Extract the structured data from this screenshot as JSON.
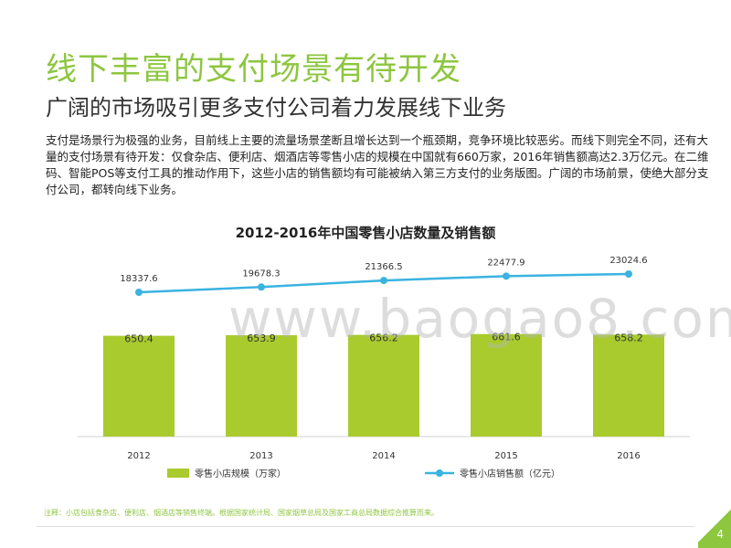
{
  "slide": {
    "title": "线下丰富的支付场景有待开发",
    "subtitle": "广阔的市场吸引更多支付公司着力发展线下业务",
    "body": "支付是场景行为极强的业务，目前线上主要的流量场景垄断且增长达到一个瓶颈期，竞争环境比较恶劣。而线下则完全不同，还有大量的支付场景有待开发：仅食杂店、便利店、烟酒店等零售小店的规模在中国就有660万家，2016年销售额高达2.3万亿元。在二维码、智能POS等支付工具的推动作用下，这些小店的销售额均有可能被纳入第三方支付的业务版图。广阔的市场前景，使绝大部分支付公司，都转向线下业务。",
    "note": "注释：小店包括食杂店、便利店、烟酒店等销售终端。根据国家统计局、国家烟草总局及国家工商总局数据综合推算而来。",
    "watermark": "www.baogao8.com",
    "page_number": "4"
  },
  "colors": {
    "title": "#8dc63f",
    "bar": "#a9cb2e",
    "line": "#3bb3e0"
  },
  "chart_data": {
    "type": "bar+line",
    "title": "2012-2016年中国零售小店数量及销售额",
    "categories": [
      "2012",
      "2013",
      "2014",
      "2015",
      "2016"
    ],
    "series": [
      {
        "name": "零售小店规模（万家）",
        "type": "bar",
        "values": [
          650.4,
          653.9,
          656.2,
          661.6,
          658.2
        ]
      },
      {
        "name": "零售小店销售额（亿元）",
        "type": "line",
        "values": [
          18337.6,
          19678.3,
          21366.5,
          22477.9,
          23024.6
        ]
      }
    ],
    "legend_position": "bottom",
    "grid": false
  }
}
